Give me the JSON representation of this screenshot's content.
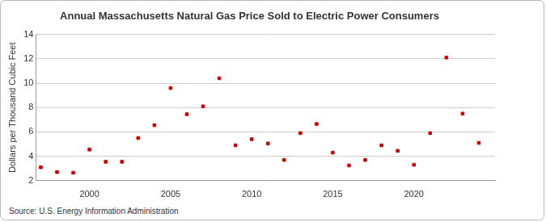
{
  "chart_data": {
    "type": "scatter",
    "title": "Annual Massachusetts Natural Gas Price Sold to Electric Power Consumers",
    "y_label": "Dollars per Thousand Cubic Feet",
    "source": "Source: U.S. Energy Information Administration",
    "x": [
      1997,
      1998,
      1999,
      2000,
      2001,
      2002,
      2003,
      2004,
      2005,
      2006,
      2007,
      2008,
      2009,
      2010,
      2011,
      2012,
      2013,
      2014,
      2015,
      2016,
      2017,
      2018,
      2019,
      2020,
      2021,
      2022,
      2023,
      2024
    ],
    "values": [
      3.1,
      2.7,
      2.65,
      4.55,
      3.55,
      3.55,
      5.5,
      6.55,
      9.6,
      7.45,
      8.1,
      10.4,
      4.9,
      5.4,
      5.05,
      3.7,
      5.9,
      6.65,
      4.3,
      3.25,
      3.7,
      4.9,
      4.45,
      3.3,
      5.9,
      12.1,
      7.5,
      5.1
    ],
    "color": "#cc0000",
    "marker": "square",
    "xlim": [
      1996.7,
      2025
    ],
    "xticks": [
      2000,
      2005,
      2010,
      2015,
      2020
    ],
    "ylim": [
      2,
      14
    ],
    "yticks": [
      2,
      4,
      6,
      8,
      10,
      12,
      14
    ],
    "grid": true
  }
}
